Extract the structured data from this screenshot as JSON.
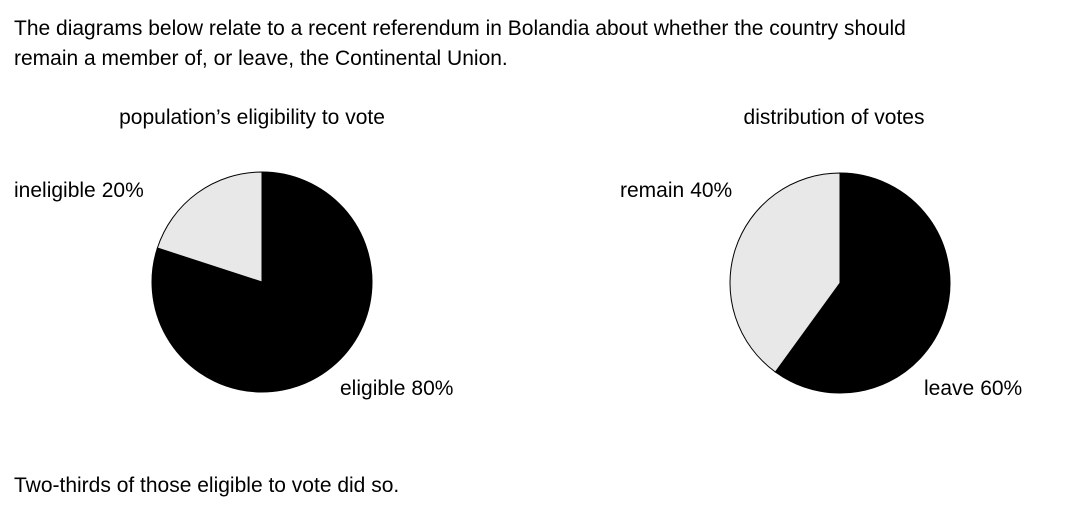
{
  "intro": [
    "The diagrams below relate to a recent referendum in Bolandia about whether the country should",
    "remain a member of, or leave, the Continental Union."
  ],
  "chart_data": [
    {
      "type": "pie",
      "title": "population’s eligibility to vote",
      "categories": [
        "eligible",
        "ineligible"
      ],
      "values": [
        80,
        20
      ],
      "value_labels": [
        "80%",
        "20%"
      ],
      "colors": [
        "#000000",
        "#e8e8e8"
      ]
    },
    {
      "type": "pie",
      "title": "distribution of votes",
      "categories": [
        "leave",
        "remain"
      ],
      "values": [
        60,
        40
      ],
      "value_labels": [
        "60%",
        "40%"
      ],
      "colors": [
        "#000000",
        "#e8e8e8"
      ]
    }
  ],
  "note": "Two-thirds of those eligible to vote did so."
}
